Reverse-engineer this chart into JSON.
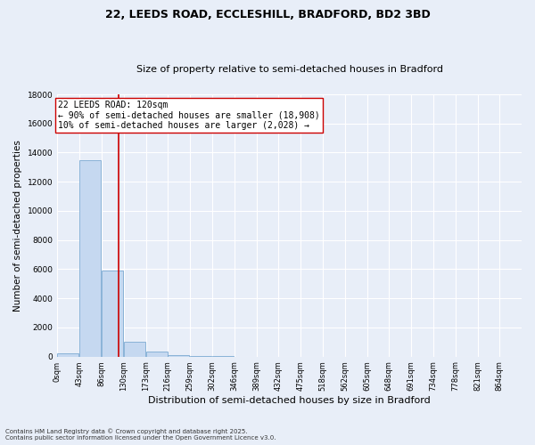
{
  "title": "22, LEEDS ROAD, ECCLESHILL, BRADFORD, BD2 3BD",
  "subtitle": "Size of property relative to semi-detached houses in Bradford",
  "xlabel": "Distribution of semi-detached houses by size in Bradford",
  "ylabel": "Number of semi-detached properties",
  "footer_line1": "Contains HM Land Registry data © Crown copyright and database right 2025.",
  "footer_line2": "Contains public sector information licensed under the Open Government Licence v3.0.",
  "bin_labels": [
    "0sqm",
    "43sqm",
    "86sqm",
    "130sqm",
    "173sqm",
    "216sqm",
    "259sqm",
    "302sqm",
    "346sqm",
    "389sqm",
    "432sqm",
    "475sqm",
    "518sqm",
    "562sqm",
    "605sqm",
    "648sqm",
    "691sqm",
    "734sqm",
    "778sqm",
    "821sqm",
    "864sqm"
  ],
  "bin_edges": [
    0,
    43,
    86,
    130,
    173,
    216,
    259,
    302,
    346,
    389,
    432,
    475,
    518,
    562,
    605,
    648,
    691,
    734,
    778,
    821,
    864
  ],
  "bar_values": [
    200,
    13500,
    5900,
    1000,
    350,
    100,
    50,
    15,
    5,
    2,
    1,
    0,
    0,
    0,
    0,
    0,
    0,
    0,
    0,
    0
  ],
  "bar_color": "#c5d8f0",
  "bar_edge_color": "#6b9fcc",
  "property_size": 120,
  "property_label": "22 LEEDS ROAD: 120sqm",
  "pct_smaller": 90,
  "count_smaller": 18908,
  "pct_larger": 10,
  "count_larger": 2028,
  "vline_color": "#cc0000",
  "ylim": [
    0,
    18000
  ],
  "yticks": [
    0,
    2000,
    4000,
    6000,
    8000,
    10000,
    12000,
    14000,
    16000,
    18000
  ],
  "background_color": "#e8eef8",
  "grid_color": "#ffffff",
  "title_fontsize": 9,
  "subtitle_fontsize": 8,
  "xlabel_fontsize": 8,
  "ylabel_fontsize": 7.5,
  "ann_fontsize": 7,
  "tick_fontsize": 6,
  "footer_fontsize": 5
}
